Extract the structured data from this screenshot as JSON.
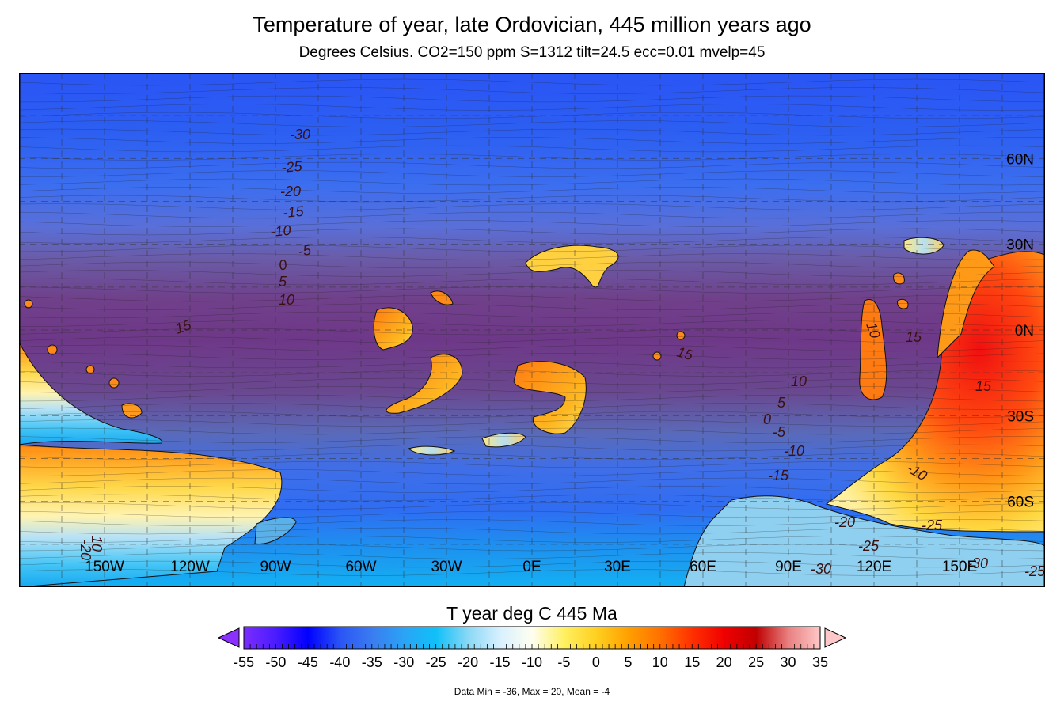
{
  "title": "Temperature of year,  late Ordovician, 445 million years ago",
  "subtitle": "Degrees Celsius. CO2=150 ppm S=1312 tilt=24.5 ecc=0.01 mvelp=45",
  "map": {
    "lon_labels": [
      "150W",
      "120W",
      "90W",
      "60W",
      "30W",
      "0E",
      "30E",
      "60E",
      "90E",
      "120E",
      "150E"
    ],
    "lat_labels": [
      "60N",
      "30N",
      "0N",
      "30S",
      "60S"
    ],
    "contour_labels": [
      "-30",
      "-25",
      "-20",
      "-15",
      "-10",
      "-5",
      "0",
      "5",
      "10",
      "15",
      "10",
      "15",
      "15",
      "10",
      "5",
      "0",
      "-5",
      "-10",
      "-15",
      "-20",
      "-25",
      "-25",
      "-30",
      "-30",
      "-25",
      "-10",
      "15",
      "-20",
      "10"
    ]
  },
  "colorbar": {
    "title": "T year deg C 445 Ma",
    "ticks": [
      "-55",
      "-50",
      "-45",
      "-40",
      "-35",
      "-30",
      "-25",
      "-20",
      "-15",
      "-10",
      "-5",
      "0",
      "5",
      "10",
      "15",
      "20",
      "25",
      "30",
      "35"
    ],
    "colors": [
      "#7a2cff",
      "#4a1cff",
      "#0000ff",
      "#2a55f5",
      "#3b7cf0",
      "#2aa4f5",
      "#10c0f8",
      "#8ad8f5",
      "#d8f0ff",
      "#fffef0",
      "#fff060",
      "#ffd020",
      "#ffa000",
      "#ff7000",
      "#ff3000",
      "#f00000",
      "#c00000",
      "#e88080",
      "#ffc8c8"
    ]
  },
  "stats": "Data Min = -36, Max = 20, Mean = -4"
}
